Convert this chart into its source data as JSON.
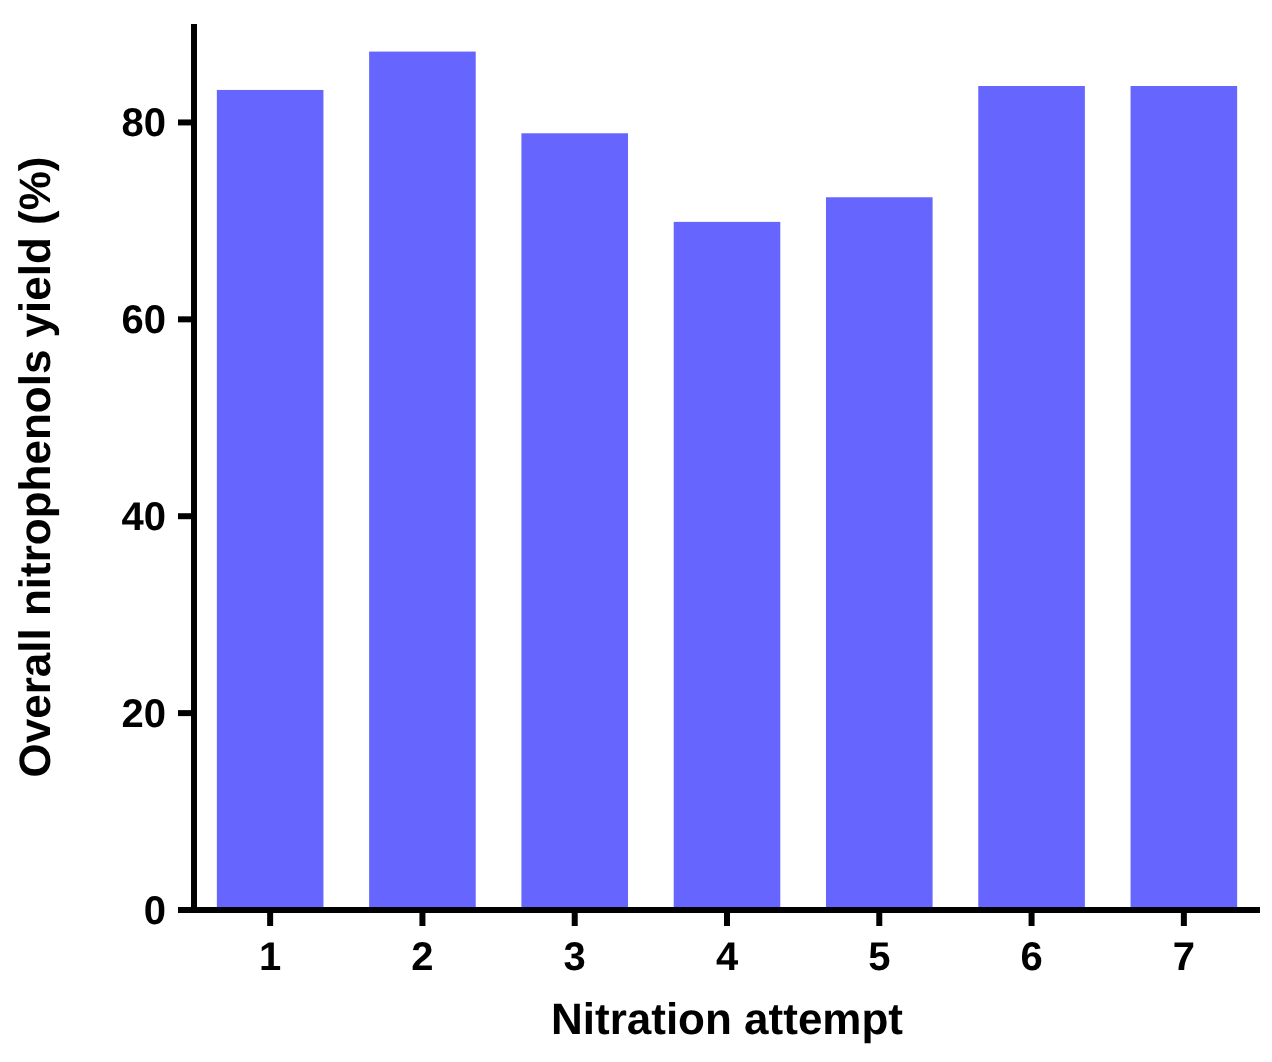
{
  "chart_data": {
    "type": "bar",
    "xlabel": "Nitration attempt",
    "ylabel": "Overall nitrophenols yield (%)",
    "categories": [
      "1",
      "2",
      "3",
      "4",
      "5",
      "6",
      "7"
    ],
    "values": [
      83.3,
      87.2,
      78.9,
      69.9,
      72.4,
      83.7,
      83.7
    ],
    "color": "#6666ff",
    "ylim": [
      0,
      90
    ],
    "yticks": [
      0,
      20,
      40,
      60,
      80
    ],
    "grid": false
  }
}
